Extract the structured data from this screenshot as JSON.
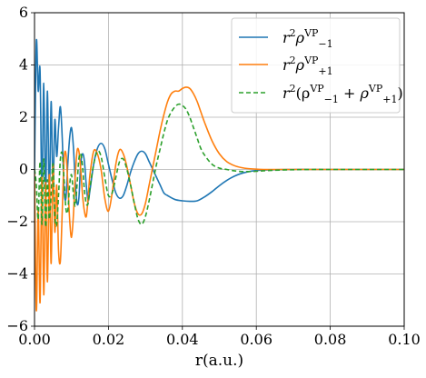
{
  "chart_data": {
    "type": "line",
    "xlabel": "r(a.u.)",
    "ylabel": "",
    "xlim": [
      0.0,
      0.1
    ],
    "ylim": [
      -6,
      6
    ],
    "xticks": [
      "0.00",
      "0.02",
      "0.04",
      "0.06",
      "0.08",
      "0.10"
    ],
    "yticks": [
      "−6",
      "−4",
      "−2",
      "0",
      "2",
      "4",
      "6"
    ],
    "grid": true,
    "legend_position": "top-right",
    "series": [
      {
        "name": "r²ρ₋₁^VP",
        "color": "#1f77b4",
        "style": "solid",
        "x": [
          0.0,
          0.0005,
          0.001,
          0.0015,
          0.002,
          0.0025,
          0.003,
          0.0035,
          0.004,
          0.0045,
          0.005,
          0.0055,
          0.006,
          0.0065,
          0.007,
          0.0075,
          0.008,
          0.0085,
          0.009,
          0.0095,
          0.01,
          0.0105,
          0.011,
          0.0115,
          0.012,
          0.0125,
          0.013,
          0.0135,
          0.014,
          0.0145,
          0.015,
          0.016,
          0.017,
          0.018,
          0.019,
          0.02,
          0.021,
          0.022,
          0.023,
          0.024,
          0.025,
          0.026,
          0.027,
          0.028,
          0.029,
          0.03,
          0.031,
          0.032,
          0.033,
          0.034,
          0.035,
          0.036,
          0.038,
          0.04,
          0.042,
          0.044,
          0.046,
          0.048,
          0.05,
          0.052,
          0.054,
          0.056,
          0.058,
          0.06,
          0.062,
          0.065,
          0.07,
          0.075,
          0.08,
          0.09,
          0.1
        ],
        "values": [
          0.0,
          4.9,
          3.0,
          3.8,
          -0.9,
          3.3,
          -1.0,
          3.0,
          -1.2,
          2.6,
          -0.8,
          1.9,
          0.5,
          1.6,
          2.4,
          1.2,
          -0.8,
          -1.1,
          0.2,
          1.2,
          1.6,
          0.9,
          -0.4,
          -1.3,
          -1.1,
          0.2,
          0.6,
          0.3,
          -0.6,
          -1.2,
          -0.8,
          0.2,
          0.8,
          1.0,
          0.8,
          0.2,
          -0.4,
          -0.9,
          -1.1,
          -1.0,
          -0.6,
          -0.1,
          0.3,
          0.6,
          0.7,
          0.6,
          0.3,
          0.0,
          -0.3,
          -0.6,
          -0.9,
          -1.0,
          -1.15,
          -1.2,
          -1.22,
          -1.2,
          -1.05,
          -0.85,
          -0.62,
          -0.42,
          -0.26,
          -0.15,
          -0.08,
          -0.04,
          -0.02,
          -0.01,
          0.0,
          0.0,
          0.0,
          0.0,
          0.0
        ]
      },
      {
        "name": "r²ρ₊₁^VP",
        "color": "#ff7f0e",
        "style": "solid",
        "x": [
          0.0,
          0.0005,
          0.001,
          0.0015,
          0.002,
          0.0025,
          0.003,
          0.0035,
          0.004,
          0.0045,
          0.005,
          0.0055,
          0.006,
          0.0065,
          0.007,
          0.0075,
          0.008,
          0.0085,
          0.009,
          0.0095,
          0.01,
          0.0105,
          0.011,
          0.0115,
          0.012,
          0.0125,
          0.013,
          0.0135,
          0.014,
          0.0145,
          0.015,
          0.016,
          0.017,
          0.018,
          0.019,
          0.02,
          0.021,
          0.022,
          0.023,
          0.024,
          0.025,
          0.026,
          0.027,
          0.028,
          0.029,
          0.03,
          0.031,
          0.032,
          0.033,
          0.034,
          0.035,
          0.036,
          0.037,
          0.038,
          0.039,
          0.04,
          0.041,
          0.042,
          0.043,
          0.044,
          0.045,
          0.046,
          0.048,
          0.05,
          0.052,
          0.054,
          0.056,
          0.058,
          0.06,
          0.062,
          0.065,
          0.07,
          0.075,
          0.08,
          0.09,
          0.1
        ],
        "values": [
          0.0,
          -5.4,
          -1.5,
          -5.1,
          -0.3,
          -4.8,
          -0.5,
          -4.3,
          -0.2,
          -3.6,
          0.2,
          -2.4,
          -0.6,
          -3.1,
          -3.5,
          -1.6,
          0.4,
          0.6,
          -0.5,
          -1.9,
          -2.6,
          -1.8,
          -0.3,
          0.7,
          0.7,
          0.0,
          -1.0,
          -1.6,
          -1.8,
          -1.1,
          -0.2,
          0.7,
          0.6,
          0.0,
          -1.1,
          -1.6,
          -0.9,
          0.2,
          0.75,
          0.6,
          0.1,
          -0.6,
          -1.3,
          -1.7,
          -1.7,
          -1.3,
          -0.6,
          0.1,
          0.8,
          1.5,
          2.1,
          2.6,
          2.9,
          3.0,
          3.0,
          3.1,
          3.15,
          3.1,
          2.9,
          2.6,
          2.2,
          1.8,
          1.1,
          0.6,
          0.3,
          0.15,
          0.07,
          0.03,
          0.01,
          0.0,
          0.0,
          0.0,
          0.0,
          0.0,
          0.0,
          0.0
        ]
      },
      {
        "name": "r²(ρ₋₁^VP + ρ₊₁^VP)",
        "color": "#2ca02c",
        "style": "dashed",
        "x": [
          0.0,
          0.0005,
          0.001,
          0.0015,
          0.002,
          0.0025,
          0.003,
          0.0035,
          0.004,
          0.0045,
          0.005,
          0.0055,
          0.006,
          0.0065,
          0.007,
          0.0075,
          0.008,
          0.0085,
          0.009,
          0.0095,
          0.01,
          0.0105,
          0.011,
          0.0115,
          0.012,
          0.0125,
          0.013,
          0.0135,
          0.014,
          0.0145,
          0.015,
          0.016,
          0.017,
          0.018,
          0.019,
          0.02,
          0.021,
          0.022,
          0.023,
          0.024,
          0.025,
          0.026,
          0.027,
          0.028,
          0.029,
          0.03,
          0.031,
          0.032,
          0.033,
          0.034,
          0.035,
          0.036,
          0.037,
          0.038,
          0.039,
          0.04,
          0.041,
          0.042,
          0.043,
          0.044,
          0.045,
          0.046,
          0.048,
          0.05,
          0.052,
          0.054,
          0.056,
          0.058,
          0.06,
          0.062,
          0.065,
          0.07,
          0.075,
          0.08,
          0.09,
          0.1
        ],
        "values": [
          0.0,
          -0.6,
          -1.9,
          0.3,
          -2.1,
          0.4,
          -2.2,
          -0.4,
          -1.9,
          -0.9,
          0.2,
          -1.8,
          -2.1,
          -1.0,
          0.4,
          0.6,
          -0.4,
          -1.5,
          -1.6,
          -0.6,
          -0.2,
          -0.9,
          -1.4,
          -0.6,
          0.4,
          0.6,
          0.1,
          -0.8,
          -1.3,
          -1.3,
          -0.7,
          0.2,
          0.7,
          0.5,
          -0.3,
          -1.0,
          -0.9,
          -0.3,
          0.3,
          0.4,
          0.0,
          -0.6,
          -1.3,
          -1.9,
          -2.1,
          -1.8,
          -1.2,
          -0.5,
          0.2,
          0.8,
          1.4,
          1.9,
          2.2,
          2.4,
          2.5,
          2.45,
          2.3,
          2.0,
          1.6,
          1.2,
          0.8,
          0.55,
          0.2,
          0.05,
          0.0,
          -0.05,
          -0.08,
          -0.08,
          -0.07,
          -0.05,
          -0.03,
          -0.01,
          0.0,
          0.0,
          0.0,
          0.0
        ]
      }
    ]
  }
}
